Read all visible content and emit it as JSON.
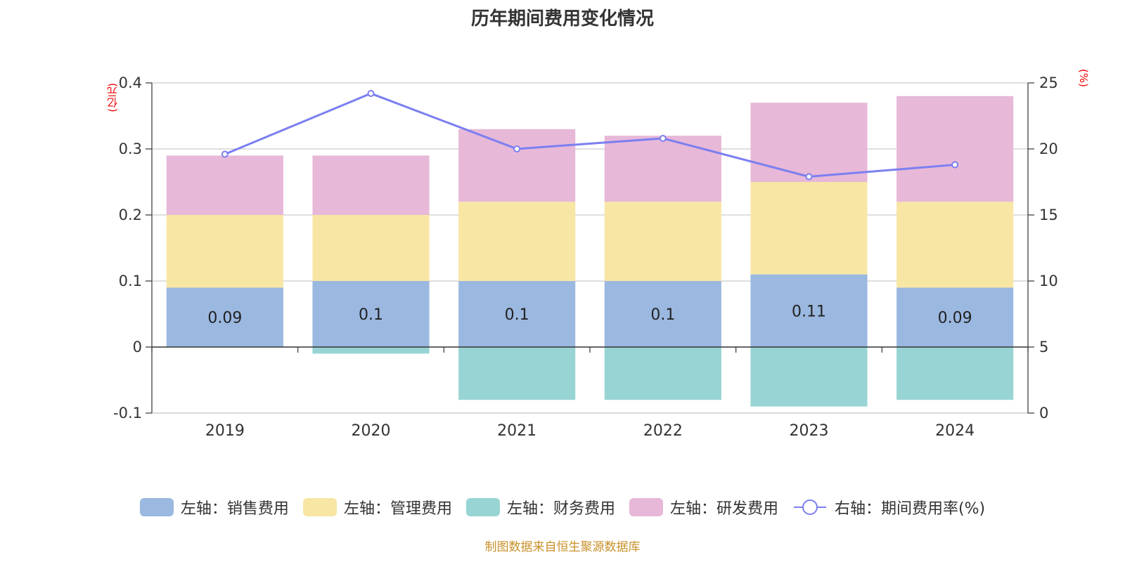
{
  "chart_data": {
    "type": "bar",
    "stacked": true,
    "title": "历年期间费用变化情况",
    "left_axis_unit": "(亿元)",
    "right_axis_unit": "(%)",
    "categories": [
      "2019",
      "2020",
      "2021",
      "2022",
      "2023",
      "2024"
    ],
    "left_ylim": [
      -0.1,
      0.4
    ],
    "left_ticks": [
      "0.4",
      "0.3",
      "0.2",
      "0.1",
      "0",
      "-0.1"
    ],
    "right_ylim": [
      0,
      25
    ],
    "right_ticks": [
      "25",
      "20",
      "15",
      "10",
      "5",
      "0"
    ],
    "grid": true,
    "legend_position": "bottom",
    "series": [
      {
        "name": "左轴：销售费用",
        "axis": "left",
        "type": "bar",
        "color": "#9bb8e0",
        "values": [
          0.09,
          0.1,
          0.1,
          0.1,
          0.11,
          0.09
        ],
        "data_labels": [
          "0.09",
          "0.1",
          "0.1",
          "0.1",
          "0.11",
          "0.09"
        ]
      },
      {
        "name": "左轴：管理费用",
        "axis": "left",
        "type": "bar",
        "color": "#f8e6a5",
        "values": [
          0.11,
          0.1,
          0.12,
          0.12,
          0.14,
          0.13
        ]
      },
      {
        "name": "左轴：财务费用",
        "axis": "left",
        "type": "bar",
        "color": "#99d4d4",
        "values": [
          0,
          -0.01,
          -0.08,
          -0.08,
          -0.09,
          -0.08
        ]
      },
      {
        "name": "左轴：研发费用",
        "axis": "left",
        "type": "bar",
        "color": "#e7b8d8",
        "values": [
          0.09,
          0.09,
          0.11,
          0.1,
          0.12,
          0.16
        ]
      },
      {
        "name": "右轴：期间费用率(%)",
        "axis": "right",
        "type": "line",
        "color": "#7b7ff0",
        "values": [
          19.6,
          24.2,
          20.0,
          20.8,
          17.9,
          18.8
        ]
      }
    ]
  },
  "footer": {
    "source": "制图数据来自恒生聚源数据库"
  }
}
